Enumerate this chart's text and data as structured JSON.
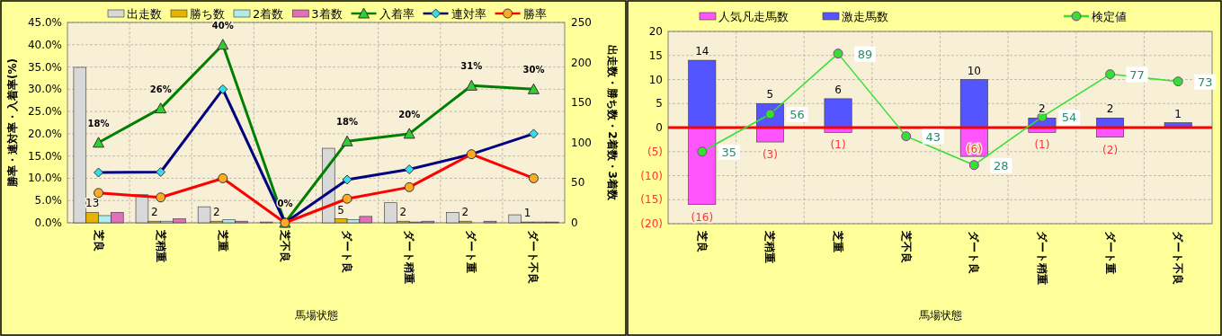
{
  "chart_data": [
    {
      "type": "bar",
      "xlabel": "馬場状態",
      "ylabel": "勝率・連対率・入着率(%)",
      "y2label": "出走数・勝ち数・2着数・3着数",
      "categories": [
        "芝良",
        "芝稍重",
        "芝重",
        "芝不良",
        "ダート良",
        "ダート稍重",
        "ダート重",
        "ダート不良"
      ],
      "series": [
        {
          "name": "出走数",
          "axis": "y2",
          "color": "#d8d8d8",
          "values": [
            194,
            35,
            20,
            1,
            93,
            25,
            13,
            10
          ]
        },
        {
          "name": "勝ち数",
          "axis": "y2",
          "color": "#e6b400",
          "values": [
            13,
            2,
            2,
            0,
            5,
            2,
            2,
            1
          ],
          "value_labels": [
            "13",
            "2",
            "2",
            null,
            "5",
            "2",
            "2",
            "1"
          ]
        },
        {
          "name": "2着数",
          "axis": "y2",
          "color": "#b0ecec",
          "values": [
            9,
            2,
            4,
            0,
            4,
            1,
            0,
            1
          ]
        },
        {
          "name": "3着数",
          "axis": "y2",
          "color": "#e070b8",
          "values": [
            13,
            5,
            2,
            0,
            8,
            2,
            2,
            1
          ]
        },
        {
          "name": "入着率",
          "type": "line",
          "axis": "y",
          "color": "#008000",
          "marker": "triangle",
          "values": [
            18.0,
            25.7,
            40,
            0,
            18.3,
            20,
            30.8,
            30
          ],
          "value_labels": [
            "18%",
            "26%",
            "40%",
            "0%",
            "18%",
            "20%",
            "31%",
            "30%"
          ]
        },
        {
          "name": "連対率",
          "type": "line",
          "axis": "y",
          "color": "#000080",
          "marker": "diamond",
          "values": [
            11.3,
            11.4,
            30,
            0,
            9.7,
            12,
            15.4,
            20
          ]
        },
        {
          "name": "勝率",
          "type": "line",
          "axis": "y",
          "color": "#ff0000",
          "marker": "circle",
          "values": [
            6.7,
            5.7,
            10,
            0,
            5.4,
            8,
            15.4,
            10
          ]
        }
      ],
      "ylim": [
        0,
        45
      ],
      "yticks": [
        {
          "value": 0,
          "label": "0.0%"
        },
        {
          "value": 5,
          "label": "5.0%"
        },
        {
          "value": 10,
          "label": "10.0%"
        },
        {
          "value": 15,
          "label": "15.0%"
        },
        {
          "value": 20,
          "label": "20.0%"
        },
        {
          "value": 25,
          "label": "25.0%"
        },
        {
          "value": 30,
          "label": "30.0%"
        },
        {
          "value": 35,
          "label": "35.0%"
        },
        {
          "value": 40,
          "label": "40.0%"
        },
        {
          "value": 45,
          "label": "45.0%"
        }
      ],
      "y2lim": [
        0,
        250
      ],
      "y2ticks": [
        0,
        50,
        100,
        150,
        200,
        250
      ],
      "grid": true,
      "legend": "top"
    },
    {
      "type": "bar",
      "stacked": true,
      "xlabel": "馬場状態",
      "categories": [
        "芝良",
        "芝稍重",
        "芝重",
        "芝不良",
        "ダート良",
        "ダート稍重",
        "ダート重",
        "ダート不良"
      ],
      "series": [
        {
          "name": "人気凡走馬数",
          "color": "#ff55ff",
          "values": [
            -16,
            -3,
            -1,
            0,
            -6,
            -1,
            -2,
            0
          ],
          "value_labels": [
            "(16)",
            "(3)",
            "(1)",
            null,
            "(6)",
            "(1)",
            "(2)",
            null
          ]
        },
        {
          "name": "激走馬数",
          "color": "#5555ff",
          "values": [
            14,
            5,
            6,
            0,
            10,
            2,
            2,
            1
          ],
          "value_labels": [
            "14",
            "5",
            "6",
            null,
            "10",
            "2",
            "2",
            "1"
          ]
        },
        {
          "name": "検定値",
          "type": "line",
          "color": "#33e033",
          "marker": "circle",
          "values": [
            -5.0,
            2.8,
            15.4,
            -1.8,
            -7.8,
            2.2,
            11.1,
            9.6
          ]
        }
      ],
      "annotations": [
        {
          "text": "35",
          "x": "芝良",
          "y": -5.0
        },
        {
          "text": "56",
          "x": "芝稍重",
          "y": 2.8
        },
        {
          "text": "89",
          "x": "芝重",
          "y": 15.4
        },
        {
          "text": "43",
          "x": "芝不良",
          "y": -1.8
        },
        {
          "text": "28",
          "x": "ダート良",
          "y": -7.8
        },
        {
          "text": "54",
          "x": "ダート稍重",
          "y": 2.2
        },
        {
          "text": "77",
          "x": "ダート重",
          "y": 11.1
        },
        {
          "text": "73",
          "x": "ダート不良",
          "y": 9.6
        }
      ],
      "ylim": [
        -20,
        20
      ],
      "yticks": [
        {
          "value": -20,
          "label": "(20)"
        },
        {
          "value": -15,
          "label": "(15)"
        },
        {
          "value": -10,
          "label": "(10)"
        },
        {
          "value": -5,
          "label": "(5)"
        },
        0,
        5,
        10,
        15,
        20
      ],
      "ref_lines": [
        {
          "axis": "y",
          "value": 0,
          "color": "#ff0000"
        }
      ],
      "grid": true,
      "legend": "top"
    }
  ]
}
